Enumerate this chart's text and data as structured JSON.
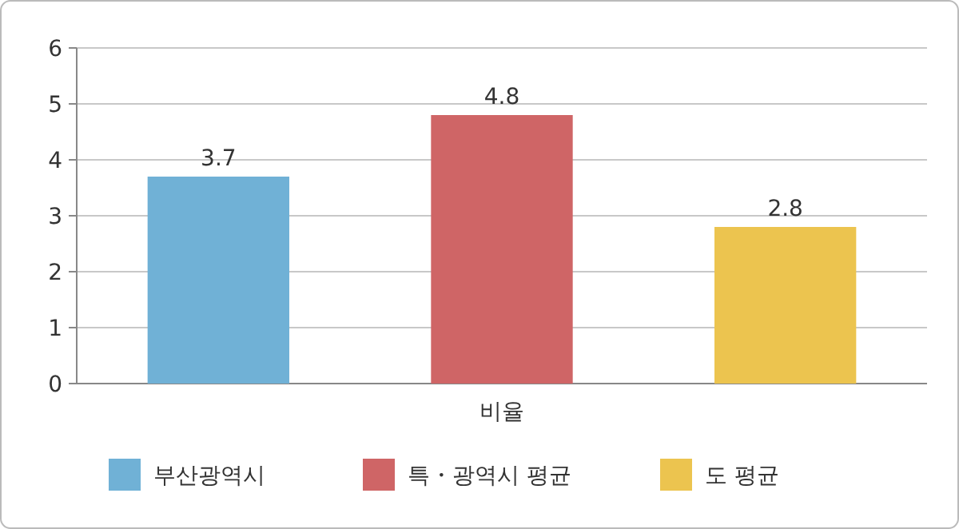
{
  "chart_data": {
    "type": "bar",
    "categories": [
      "비율"
    ],
    "series": [
      {
        "name": "부산광역시",
        "color": "#70b1d6",
        "values": [
          3.7
        ]
      },
      {
        "name": "특・광역시 평균",
        "color": "#cf6566",
        "values": [
          4.8
        ]
      },
      {
        "name": "도 평균",
        "color": "#ecc44f",
        "values": [
          2.8
        ]
      }
    ],
    "ylim": [
      0,
      6
    ],
    "yticks": [
      0,
      1,
      2,
      3,
      4,
      5,
      6
    ],
    "grid": "y",
    "legend": "bottom",
    "data_labels": true
  }
}
